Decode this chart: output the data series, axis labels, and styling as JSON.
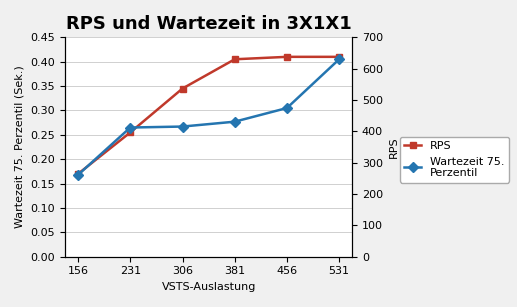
{
  "title": "RPS und Wartezeit in 3X1X1",
  "xlabel": "VSTS-Auslastung",
  "ylabel_left": "Wartezeit 75. Perzentil (Sek.)",
  "ylabel_right": "RPS",
  "x": [
    156,
    231,
    306,
    381,
    456,
    531
  ],
  "rps_line": [
    0.17,
    0.255,
    0.345,
    0.405,
    0.41,
    0.41
  ],
  "wartezeit_75": [
    0.168,
    0.265,
    0.267,
    0.277,
    0.305,
    0.405
  ],
  "ylim_left": [
    0.0,
    0.45
  ],
  "ylim_right": [
    0,
    700
  ],
  "left_ticks": [
    0.0,
    0.05,
    0.1,
    0.15,
    0.2,
    0.25,
    0.3,
    0.35,
    0.4,
    0.45
  ],
  "right_ticks": [
    0,
    100,
    200,
    300,
    400,
    500,
    600,
    700
  ],
  "rps_color": "#c0392b",
  "wartezeit_color": "#2475b0",
  "bg_color": "#f0f0f0",
  "plot_bg_color": "#ffffff",
  "legend_rps": "RPS",
  "legend_wartezeit": "Wartezeit 75.\nPerzentil",
  "title_fontsize": 13,
  "axis_label_fontsize": 8,
  "tick_fontsize": 8,
  "legend_fontsize": 8,
  "grid_color": "#d0d0d0"
}
